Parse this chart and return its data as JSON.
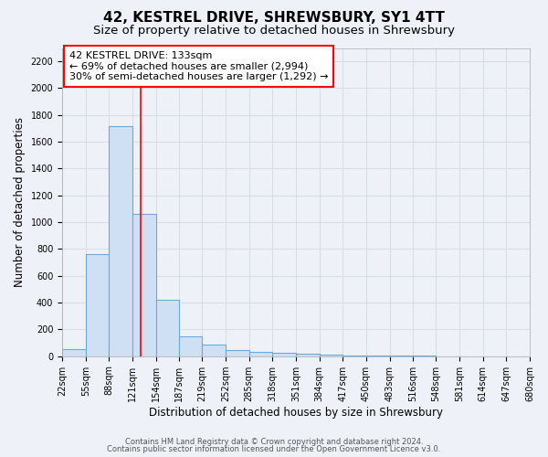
{
  "title": "42, KESTREL DRIVE, SHREWSBURY, SY1 4TT",
  "subtitle": "Size of property relative to detached houses in Shrewsbury",
  "xlabel": "Distribution of detached houses by size in Shrewsbury",
  "ylabel": "Number of detached properties",
  "footnote1": "Contains HM Land Registry data © Crown copyright and database right 2024.",
  "footnote2": "Contains public sector information licensed under the Open Government Licence v3.0.",
  "annotation_line1": "42 KESTREL DRIVE: 133sqm",
  "annotation_line2": "← 69% of detached houses are smaller (2,994)",
  "annotation_line3": "30% of semi-detached houses are larger (1,292) →",
  "bin_edges": [
    22,
    55,
    88,
    121,
    154,
    187,
    219,
    252,
    285,
    318,
    351,
    384,
    417,
    450,
    483,
    516,
    548,
    581,
    614,
    647,
    680
  ],
  "bar_heights": [
    55,
    760,
    1720,
    1060,
    420,
    150,
    85,
    45,
    35,
    25,
    20,
    15,
    5,
    3,
    2,
    2,
    1,
    1,
    1,
    1
  ],
  "bar_color": "#cfe0f5",
  "bar_edge_color": "#6aaad4",
  "red_line_x": 133,
  "ylim": [
    0,
    2300
  ],
  "yticks": [
    0,
    200,
    400,
    600,
    800,
    1000,
    1200,
    1400,
    1600,
    1800,
    2000,
    2200
  ],
  "background_color": "#eef2f8",
  "grid_color": "#d8dde8",
  "title_fontsize": 11,
  "subtitle_fontsize": 9.5,
  "tick_label_fontsize": 7,
  "ylabel_fontsize": 8.5,
  "xlabel_fontsize": 8.5,
  "footnote_fontsize": 6,
  "annotation_fontsize": 8
}
